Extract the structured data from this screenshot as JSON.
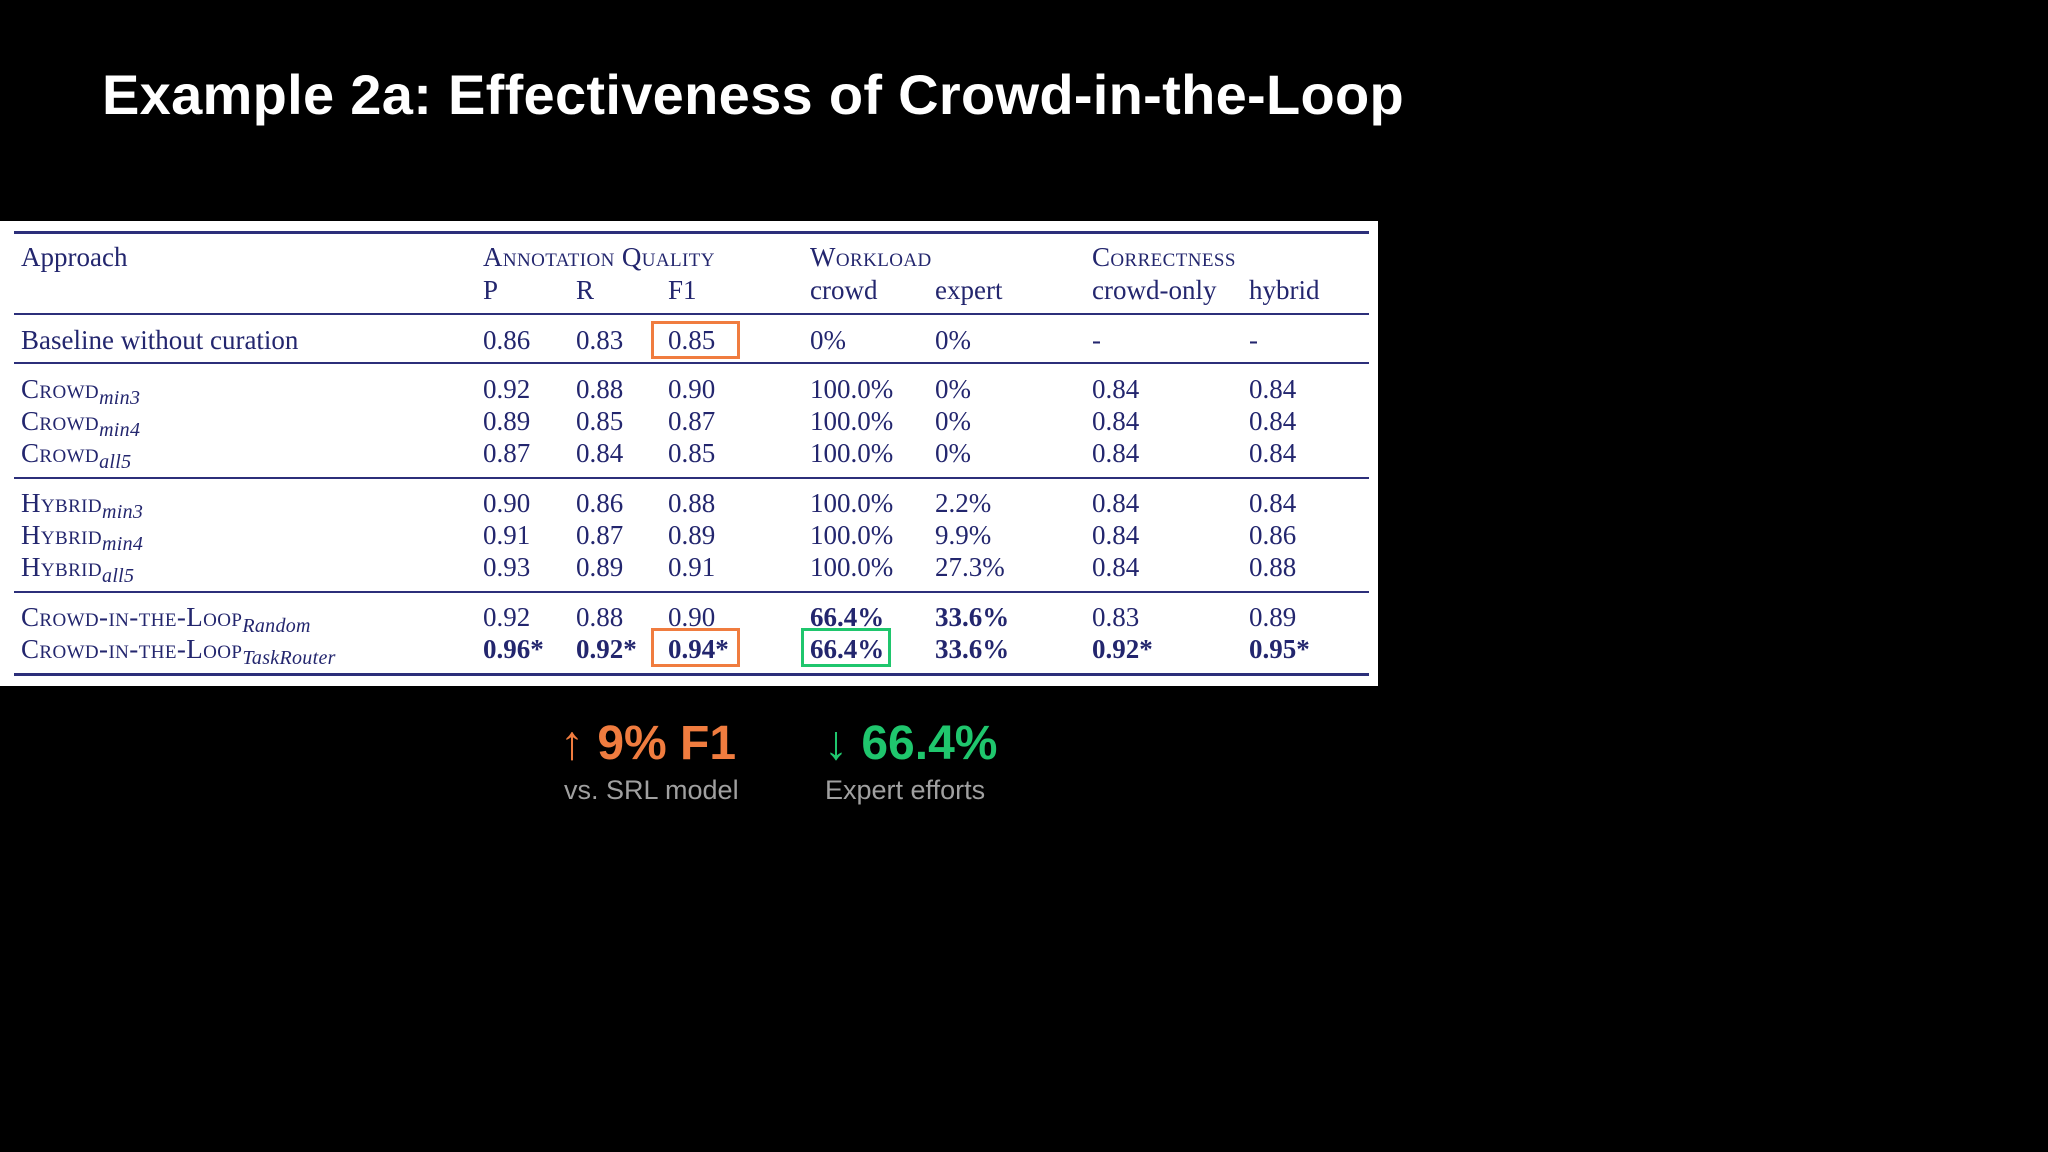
{
  "slide": {
    "title": "Example 2a: Effectiveness of Crowd-in-the-Loop"
  },
  "table": {
    "group_headers": {
      "approach": "Approach",
      "annotation_quality": "Annotation Quality",
      "workload": "Workload",
      "correctness": "Correctness"
    },
    "sub_headers": {
      "p": "P",
      "r": "R",
      "f1": "F1",
      "crowd": "crowd",
      "expert": "expert",
      "crowd_only": "crowd-only",
      "hybrid": "hybrid"
    },
    "rows": [
      {
        "name": "Baseline without curation",
        "sub": "",
        "p": "0.86",
        "r": "0.83",
        "f1": "0.85",
        "crowd": "0%",
        "expert": "0%",
        "crowd_only": "-",
        "hybrid": "-"
      },
      {
        "name": "Crowd",
        "sub": "min3",
        "p": "0.92",
        "r": "0.88",
        "f1": "0.90",
        "crowd": "100.0%",
        "expert": "0%",
        "crowd_only": "0.84",
        "hybrid": "0.84"
      },
      {
        "name": "Crowd",
        "sub": "min4",
        "p": "0.89",
        "r": "0.85",
        "f1": "0.87",
        "crowd": "100.0%",
        "expert": "0%",
        "crowd_only": "0.84",
        "hybrid": "0.84"
      },
      {
        "name": "Crowd",
        "sub": "all5",
        "p": "0.87",
        "r": "0.84",
        "f1": "0.85",
        "crowd": "100.0%",
        "expert": "0%",
        "crowd_only": "0.84",
        "hybrid": "0.84"
      },
      {
        "name": "Hybrid",
        "sub": "min3",
        "p": "0.90",
        "r": "0.86",
        "f1": "0.88",
        "crowd": "100.0%",
        "expert": "2.2%",
        "crowd_only": "0.84",
        "hybrid": "0.84"
      },
      {
        "name": "Hybrid",
        "sub": "min4",
        "p": "0.91",
        "r": "0.87",
        "f1": "0.89",
        "crowd": "100.0%",
        "expert": "9.9%",
        "crowd_only": "0.84",
        "hybrid": "0.86"
      },
      {
        "name": "Hybrid",
        "sub": "all5",
        "p": "0.93",
        "r": "0.89",
        "f1": "0.91",
        "crowd": "100.0%",
        "expert": "27.3%",
        "crowd_only": "0.84",
        "hybrid": "0.88"
      },
      {
        "name": "Crowd-in-the-Loop",
        "sub": "Random",
        "p": "0.92",
        "r": "0.88",
        "f1": "0.90",
        "crowd": "66.4%",
        "expert": "33.6%",
        "crowd_only": "0.83",
        "hybrid": "0.89"
      },
      {
        "name": "Crowd-in-the-Loop",
        "sub": "TaskRouter",
        "p": "0.96*",
        "r": "0.92*",
        "f1": "0.94*",
        "crowd": "66.4%",
        "expert": "33.6%",
        "crowd_only": "0.92*",
        "hybrid": "0.95*"
      }
    ]
  },
  "callouts": {
    "f1_gain": {
      "main": "↑ 9% F1",
      "sub": "vs. SRL model"
    },
    "expert_effort": {
      "main": "↓ 66.4%",
      "sub": "Expert efforts"
    }
  },
  "colors": {
    "orange": "#f07c3f",
    "green": "#1fc66d",
    "table_ink": "#23266e"
  }
}
